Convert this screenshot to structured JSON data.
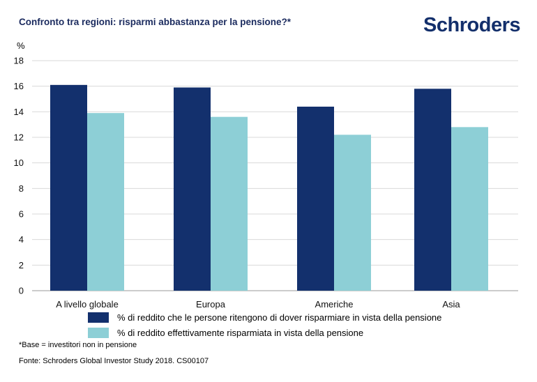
{
  "header": {
    "title": "Confronto tra regioni: risparmi abbastanza per la pensione?*",
    "logo": "Schroders"
  },
  "chart_data": {
    "type": "bar",
    "title": "Confronto tra regioni: risparmi abbastanza per la pensione?*",
    "ylabel": "%",
    "xlabel": "",
    "ylim": [
      0,
      18
    ],
    "yticks": [
      0,
      2,
      4,
      6,
      8,
      10,
      12,
      14,
      16,
      18
    ],
    "grid": true,
    "legend_position": "bottom",
    "categories": [
      "A livello globale",
      "Europa",
      "Americhe",
      "Asia"
    ],
    "series": [
      {
        "name": "% di reddito che le persone ritengono di dover risparmiare in vista della pensione",
        "color": "#13306d",
        "values": [
          16.1,
          15.9,
          14.4,
          15.8
        ]
      },
      {
        "name": "% di reddito effettivamente risparmiata in vista della pensione",
        "color": "#8dcfd6",
        "values": [
          13.9,
          13.6,
          12.2,
          12.8
        ]
      }
    ]
  },
  "footnotes": {
    "base": "*Base = investitori non in pensione",
    "source": "Fonte: Schroders Global Investor Study 2018. CS00107"
  }
}
